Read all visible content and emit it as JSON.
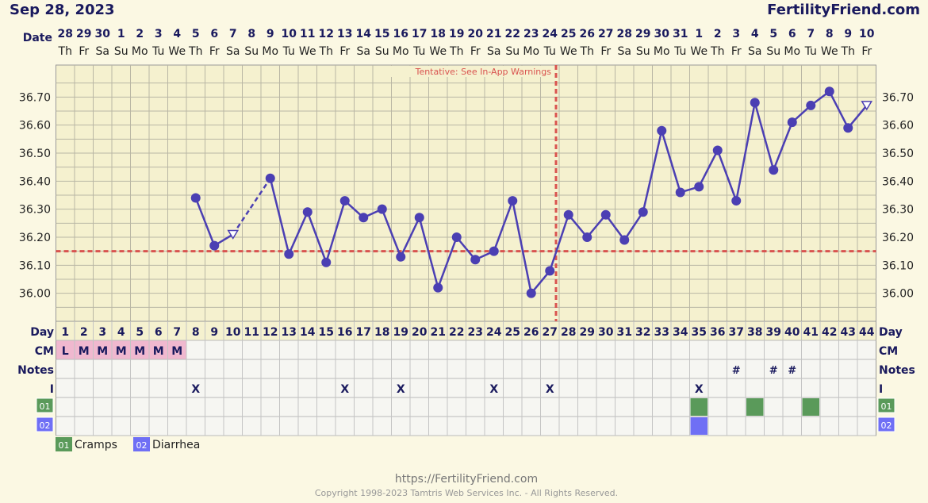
{
  "header": {
    "date_title": "Sep 28, 2023",
    "site_name": "FertilityFriend.com"
  },
  "labels": {
    "date": "Date",
    "day": "Day",
    "cm": "CM",
    "notes": "Notes",
    "intercourse": "I",
    "tentative_warning": "Tentative: See In-App Warnings",
    "symptom_code_1": "01",
    "symptom_code_2": "02"
  },
  "legend": [
    {
      "code": "01",
      "label": "Cramps",
      "color": "#5a9a5a"
    },
    {
      "code": "02",
      "label": "Diarrhea",
      "color": "#6f6ff5"
    }
  ],
  "footer": {
    "url": "https://FertilityFriend.com",
    "copyright": "Copyright 1998-2023 Tamtris Web Services Inc. - All Rights Reserved."
  },
  "colors": {
    "line": "#4b3fb3",
    "dot": "#4b3fb3",
    "coverline": "#d9534f",
    "grid_bg": "#f5f1cf",
    "cm_bg": "#f0b8cf",
    "cramps": "#5a9a5a",
    "diarrhea": "#6f6ff5"
  },
  "chart_data": {
    "type": "line",
    "title": "",
    "ylabel": "",
    "ylim": [
      35.9,
      36.8
    ],
    "yticks": [
      "36.00",
      "36.10",
      "36.20",
      "36.30",
      "36.40",
      "36.50",
      "36.60",
      "36.70"
    ],
    "dates": [
      "28",
      "29",
      "30",
      "1",
      "2",
      "3",
      "4",
      "5",
      "6",
      "7",
      "8",
      "9",
      "10",
      "11",
      "12",
      "13",
      "14",
      "15",
      "16",
      "17",
      "18",
      "19",
      "20",
      "21",
      "22",
      "23",
      "24",
      "25",
      "26",
      "27",
      "28",
      "29",
      "30",
      "31",
      "1",
      "2",
      "3",
      "4",
      "5",
      "6",
      "7",
      "8",
      "9",
      "10"
    ],
    "weekdays": [
      "Th",
      "Fr",
      "Sa",
      "Su",
      "Mo",
      "Tu",
      "We",
      "Th",
      "Fr",
      "Sa",
      "Su",
      "Mo",
      "Tu",
      "We",
      "Th",
      "Fr",
      "Sa",
      "Su",
      "Mo",
      "Tu",
      "We",
      "Th",
      "Fr",
      "Sa",
      "Su",
      "Mo",
      "Tu",
      "We",
      "Th",
      "Fr",
      "Sa",
      "Su",
      "Mo",
      "Tu",
      "We",
      "Th",
      "Fr",
      "Sa",
      "Su",
      "Mo",
      "Tu",
      "We",
      "Th",
      "Fr"
    ],
    "cycle_days": [
      1,
      2,
      3,
      4,
      5,
      6,
      7,
      8,
      9,
      10,
      11,
      12,
      13,
      14,
      15,
      16,
      17,
      18,
      19,
      20,
      21,
      22,
      23,
      24,
      25,
      26,
      27,
      28,
      29,
      30,
      31,
      32,
      33,
      34,
      35,
      36,
      37,
      38,
      39,
      40,
      41,
      42,
      43,
      44
    ],
    "temperatures": [
      null,
      null,
      null,
      null,
      null,
      null,
      null,
      36.34,
      36.17,
      36.21,
      null,
      36.41,
      36.14,
      36.29,
      36.11,
      36.33,
      36.27,
      36.3,
      36.13,
      36.27,
      36.02,
      36.2,
      36.12,
      36.15,
      36.33,
      36.0,
      36.08,
      36.28,
      36.2,
      36.28,
      36.19,
      36.29,
      36.58,
      36.36,
      36.38,
      36.51,
      36.33,
      36.68,
      36.44,
      36.61,
      36.67,
      36.72,
      36.59,
      36.67
    ],
    "open_points": [
      10,
      44
    ],
    "dashed_segments": [
      [
        10,
        12
      ]
    ],
    "coverline": 36.15,
    "ovulation_day": 27,
    "cm": [
      "L",
      "M",
      "M",
      "M",
      "M",
      "M",
      "M",
      null,
      null,
      null,
      null,
      null,
      null,
      null,
      null,
      null,
      null,
      null,
      null,
      null,
      null,
      null,
      null,
      null,
      null,
      null,
      null,
      null,
      null,
      null,
      null,
      null,
      null,
      null,
      null,
      null,
      null,
      null,
      null,
      null,
      null,
      null,
      null,
      null
    ],
    "notes_days": [
      37,
      39,
      40
    ],
    "notes_mark": "#",
    "intercourse_days": [
      8,
      16,
      19,
      24,
      27,
      35
    ],
    "intercourse_mark": "X",
    "symptom_01_days": [
      35,
      38,
      41
    ],
    "symptom_02_days": [
      35
    ]
  }
}
